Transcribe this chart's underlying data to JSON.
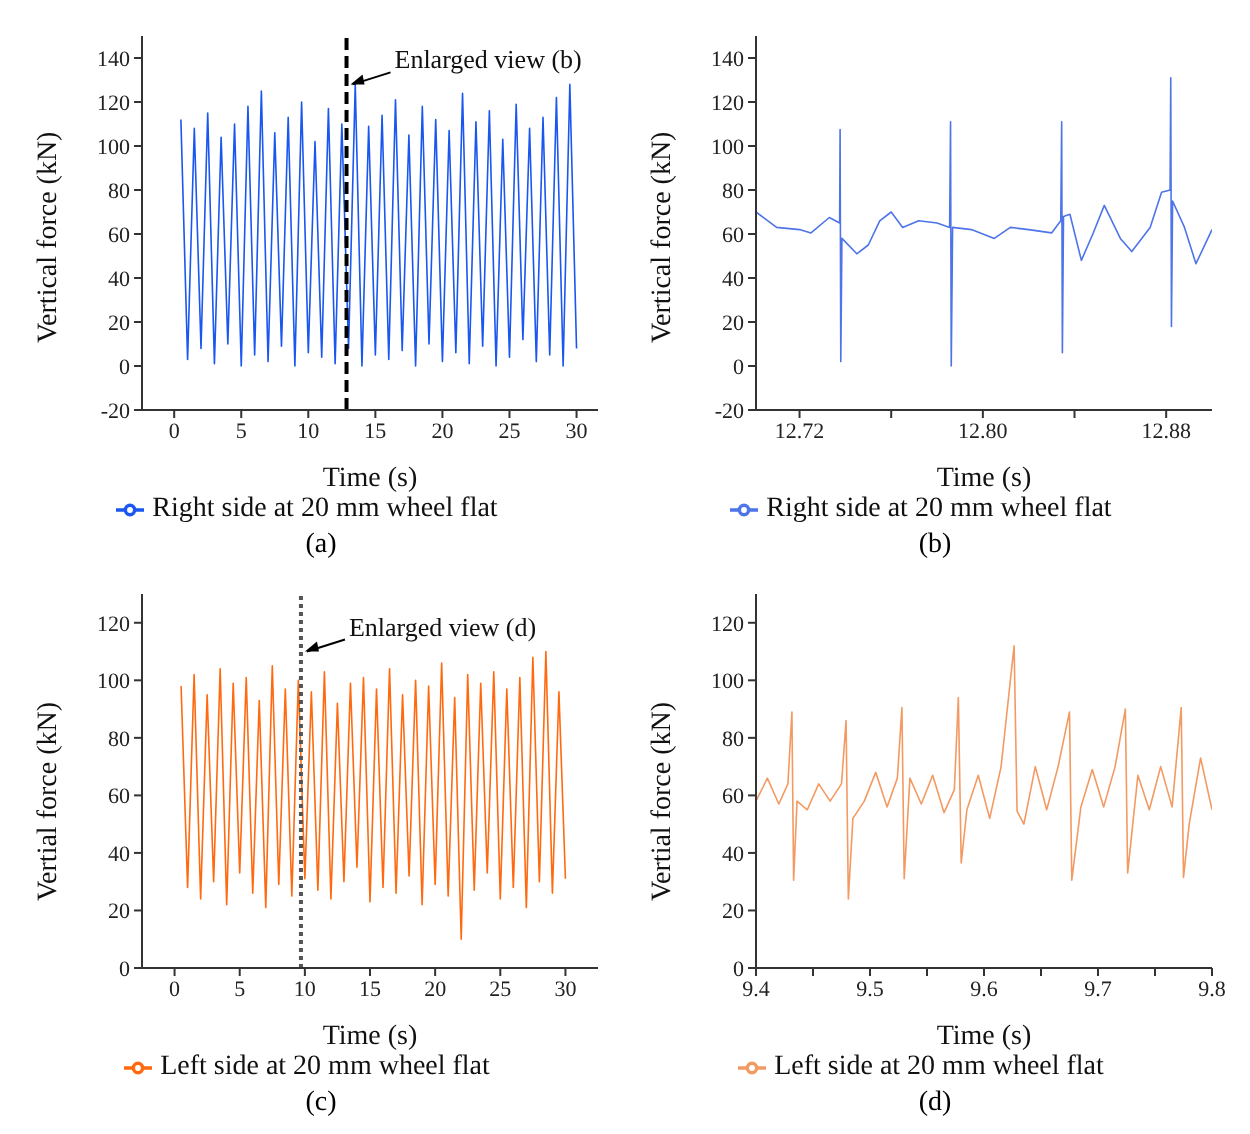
{
  "chart_data": [
    {
      "type": "line",
      "xlabel": "Time (s)",
      "ylabel": "Vertical force (kN)",
      "xlim": [
        -2.4,
        31.6
      ],
      "ylim": [
        -20,
        150
      ],
      "xticks": [
        0,
        5,
        10,
        15,
        20,
        25,
        30
      ],
      "yticks": [
        -20,
        0,
        20,
        40,
        60,
        80,
        100,
        120,
        140
      ],
      "legend": "bottom",
      "ref_lines": [
        {
          "axis": "x",
          "value": 12.85,
          "color": "#000000",
          "line_style": "dashed"
        }
      ],
      "annotations": [
        {
          "text": "Enlarged view (b)",
          "x": 12.85,
          "y": 128
        },
        "(a)"
      ],
      "series": [
        {
          "name": "Right side at 20 mm wheel flat",
          "color": "#1a56f0",
          "x": [
            0.5,
            1.0,
            1.5,
            2.0,
            2.5,
            3.0,
            3.5,
            4.0,
            4.5,
            5.0,
            5.5,
            6.0,
            6.5,
            7.0,
            7.5,
            8.0,
            8.5,
            9.0,
            9.5,
            10.0,
            10.5,
            11.0,
            11.5,
            12.0,
            12.5,
            13.0,
            13.5,
            14.0,
            14.5,
            15.0,
            15.5,
            16.0,
            16.5,
            17.0,
            17.5,
            18.0,
            18.5,
            19.0,
            19.5,
            20.0,
            20.5,
            21.0,
            21.5,
            22.0,
            22.5,
            23.0,
            23.5,
            24.0,
            24.5,
            25.0,
            25.5,
            26.0,
            26.5,
            27.0,
            27.5,
            28.0,
            28.5,
            29.0,
            29.5,
            30.0
          ],
          "values": [
            112,
            3,
            108,
            8,
            115,
            1,
            104,
            10,
            110,
            0,
            118,
            5,
            125,
            2,
            106,
            9,
            113,
            0,
            120,
            6,
            102,
            4,
            117,
            1,
            110,
            8,
            128,
            0,
            109,
            5,
            114,
            3,
            121,
            7,
            105,
            0,
            118,
            10,
            112,
            2,
            107,
            6,
            124,
            1,
            111,
            9,
            116,
            0,
            103,
            4,
            119,
            12,
            108,
            2,
            113,
            5,
            122,
            0,
            128,
            8
          ]
        }
      ]
    },
    {
      "type": "line",
      "xlabel": "Time (s)",
      "ylabel": "Vertical force (kN)",
      "xlim": [
        12.701,
        12.9
      ],
      "ylim": [
        -20,
        150
      ],
      "xticks": [
        12.72,
        {
          "value": 12.76,
          "label": null
        },
        {
          "value": 12.8,
          "label": "12.80"
        },
        {
          "value": 12.84,
          "label": null
        },
        12.88
      ],
      "yticks": [
        -20,
        0,
        20,
        40,
        60,
        80,
        100,
        120,
        140
      ],
      "legend": "bottom",
      "annotations": [
        "(b)"
      ],
      "series": [
        {
          "name": "Right side at 20 mm wheel flat",
          "color": "#4d74e8",
          "x": [
            12.701,
            12.71,
            12.72,
            12.725,
            12.733,
            12.7375,
            12.7377,
            12.738,
            12.7385,
            12.745,
            12.75,
            12.755,
            12.76,
            12.765,
            12.772,
            12.78,
            12.7855,
            12.7859,
            12.7862,
            12.7868,
            12.795,
            12.805,
            12.812,
            12.82,
            12.83,
            12.834,
            12.8344,
            12.8347,
            12.8352,
            12.838,
            12.843,
            12.848,
            12.853,
            12.86,
            12.865,
            12.873,
            12.878,
            12.8817,
            12.882,
            12.8823,
            12.8828,
            12.888,
            12.893,
            12.9
          ],
          "values": [
            70,
            63,
            62,
            60.5,
            67.5,
            65,
            107.5,
            2,
            58,
            51,
            55,
            66,
            70,
            63,
            66,
            65,
            63,
            111,
            0,
            63,
            62,
            58,
            63,
            62,
            60.5,
            66,
            111,
            6,
            68,
            69,
            48,
            60,
            73,
            58,
            52,
            63,
            79,
            80,
            131,
            18,
            75,
            63,
            46.5,
            62
          ]
        }
      ]
    },
    {
      "type": "line",
      "xlabel": "Time (s)",
      "ylabel": "Vertial force (kN)",
      "xlim": [
        -2.5,
        32.5
      ],
      "ylim": [
        0,
        130
      ],
      "xticks": [
        0,
        5,
        10,
        15,
        20,
        25,
        30
      ],
      "yticks": [
        0,
        20,
        40,
        60,
        80,
        100,
        120
      ],
      "legend": "bottom",
      "ref_lines": [
        {
          "axis": "x",
          "value": 9.7,
          "color": "#555555",
          "line_style": "dotted"
        }
      ],
      "annotations": [
        {
          "text": "Enlarged view (d)",
          "x": 9.7,
          "y": 110
        },
        "(c)"
      ],
      "series": [
        {
          "name": "Left side at 20 mm wheel flat",
          "color": "#ff6a10",
          "x": [
            0.5,
            1.0,
            1.5,
            2.0,
            2.5,
            3.0,
            3.5,
            4.0,
            4.5,
            5.0,
            5.5,
            6.0,
            6.5,
            7.0,
            7.5,
            8.0,
            8.5,
            9.0,
            9.5,
            10.0,
            10.5,
            11.0,
            11.5,
            12.0,
            12.5,
            13.0,
            13.5,
            14.0,
            14.5,
            15.0,
            15.5,
            16.0,
            16.5,
            17.0,
            17.5,
            18.0,
            18.5,
            19.0,
            19.5,
            20.0,
            20.5,
            21.0,
            21.5,
            22.0,
            22.5,
            23.0,
            23.5,
            24.0,
            24.5,
            25.0,
            25.5,
            26.0,
            26.5,
            27.0,
            27.5,
            28.0,
            28.5,
            29.0,
            29.5,
            30.0
          ],
          "values": [
            98,
            28,
            102,
            24,
            95,
            30,
            104,
            22,
            99,
            33,
            101,
            26,
            93,
            21,
            105,
            29,
            97,
            25,
            100,
            31,
            96,
            27,
            103,
            24,
            92,
            30,
            99,
            35,
            101,
            23,
            97,
            28,
            104,
            26,
            95,
            32,
            100,
            22,
            98,
            29,
            106,
            25,
            94,
            10,
            102,
            27,
            99,
            33,
            103,
            24,
            97,
            28,
            101,
            21,
            108,
            30,
            110,
            26,
            96,
            31
          ]
        }
      ]
    },
    {
      "type": "line",
      "xlabel": "Time (s)",
      "ylabel": "Vertial force (kN)",
      "xlim": [
        9.4,
        9.8
      ],
      "ylim": [
        0,
        130
      ],
      "xticks": [
        9.4,
        {
          "value": 9.45,
          "label": null
        },
        9.5,
        {
          "value": 9.55,
          "label": null
        },
        9.6,
        {
          "value": 9.65,
          "label": null
        },
        9.7,
        {
          "value": 9.75,
          "label": null
        },
        9.8
      ],
      "yticks": [
        0,
        20,
        40,
        60,
        80,
        100,
        120
      ],
      "legend": "bottom",
      "annotations": [
        "(d)"
      ],
      "series": [
        {
          "name": "Left side at 20 mm wheel flat",
          "color": "#f39a62",
          "x": [
            9.4,
            9.41,
            9.42,
            9.428,
            9.4315,
            9.433,
            9.436,
            9.445,
            9.455,
            9.465,
            9.475,
            9.479,
            9.481,
            9.485,
            9.495,
            9.505,
            9.515,
            9.524,
            9.528,
            9.53,
            9.535,
            9.545,
            9.555,
            9.565,
            9.574,
            9.5775,
            9.58,
            9.585,
            9.595,
            9.605,
            9.615,
            9.6264,
            9.629,
            9.635,
            9.645,
            9.655,
            9.665,
            9.675,
            9.677,
            9.685,
            9.695,
            9.705,
            9.715,
            9.724,
            9.726,
            9.735,
            9.745,
            9.755,
            9.765,
            9.773,
            9.775,
            9.78,
            9.79,
            9.8
          ],
          "values": [
            58,
            66,
            57,
            64,
            89,
            30.5,
            58,
            55,
            64,
            58,
            64,
            86,
            24,
            52,
            58,
            68,
            56,
            66,
            90.5,
            31,
            66,
            57,
            67,
            54,
            62,
            94,
            36.5,
            55,
            67,
            52,
            70,
            112,
            54.5,
            50,
            70,
            55,
            70,
            89,
            30.5,
            56,
            69,
            56,
            70,
            90,
            33,
            67,
            55,
            70,
            56,
            90.5,
            31.5,
            50,
            73,
            55
          ]
        }
      ]
    }
  ]
}
